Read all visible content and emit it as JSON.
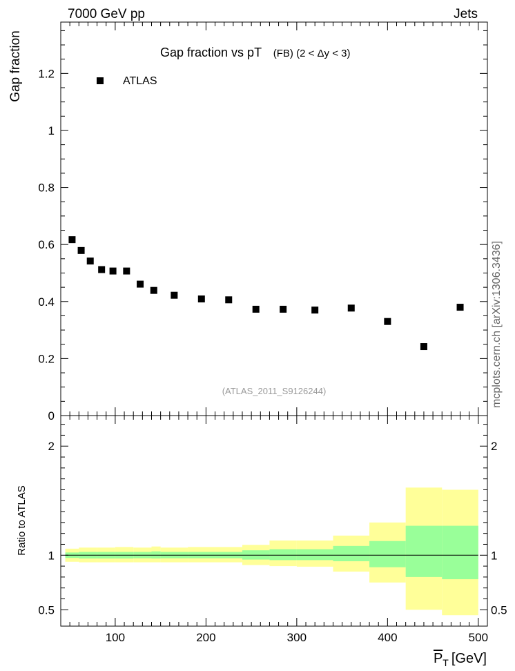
{
  "header": {
    "left": "7000 GeV pp",
    "right": "Jets",
    "side_label": "mcplots.cern.ch [arXiv:1306.3436]"
  },
  "chart_data": {
    "type": "scatter",
    "title_main": "Gap fraction vs pT",
    "title_sub": "(FB) (2 < Δy < 3)",
    "ylabel": "Gap fraction",
    "xlabel": "P_T [GeV]",
    "xlabel_parts": {
      "symbol": "P",
      "sub": "T",
      "unit": "[GeV]"
    },
    "analysis_tag": "(ATLAS_2011_S9126244)",
    "legend": [
      {
        "name": "ATLAS",
        "marker": "filled-square",
        "color": "#000000",
        "position": "top-left"
      }
    ],
    "xlim": [
      40,
      510
    ],
    "ylim": [
      0,
      1.38
    ],
    "yticks": [
      0,
      0.2,
      0.4,
      0.6,
      0.8,
      1,
      1.2
    ],
    "ytick_labels": [
      "0",
      "0.2",
      "0.4",
      "0.6",
      "0.8",
      "1",
      "1.2"
    ],
    "series": [
      {
        "name": "ATLAS",
        "x": [
          52.5,
          62.5,
          72.5,
          85,
          97.5,
          112.5,
          127.5,
          142.5,
          165,
          195,
          225,
          255,
          285,
          320,
          360,
          400,
          440,
          480
        ],
        "y": [
          0.617,
          0.579,
          0.542,
          0.512,
          0.507,
          0.507,
          0.461,
          0.439,
          0.422,
          0.409,
          0.406,
          0.373,
          0.373,
          0.37,
          0.377,
          0.33,
          0.242,
          0.38
        ]
      }
    ],
    "ratio_panel": {
      "ylabel": "Ratio to ATLAS",
      "ylim": [
        0.35,
        2.28
      ],
      "yticks": [
        0.5,
        1,
        2
      ],
      "ytick_labels": [
        "0.5",
        "1",
        "2"
      ],
      "xticks": [
        100,
        200,
        300,
        400,
        500
      ],
      "xtick_labels": [
        "100",
        "200",
        "300",
        "400",
        "500"
      ],
      "reference": 1,
      "bin_edges": [
        45,
        60,
        80,
        100,
        120,
        140,
        150,
        180,
        210,
        240,
        270,
        300,
        340,
        380,
        420,
        460,
        500
      ],
      "stat_band": {
        "color": "#99ff99",
        "lo": [
          0.975,
          0.97,
          0.97,
          0.97,
          0.972,
          0.97,
          0.972,
          0.972,
          0.972,
          0.96,
          0.955,
          0.955,
          0.945,
          0.89,
          0.8,
          0.78
        ],
        "hi": [
          1.025,
          1.03,
          1.03,
          1.03,
          1.03,
          1.035,
          1.03,
          1.03,
          1.03,
          1.045,
          1.055,
          1.055,
          1.085,
          1.13,
          1.27,
          1.27
        ]
      },
      "syst_band": {
        "color": "#ffff99",
        "lo": [
          0.94,
          0.935,
          0.935,
          0.935,
          0.935,
          0.935,
          0.935,
          0.935,
          0.935,
          0.91,
          0.9,
          0.895,
          0.85,
          0.75,
          0.5,
          0.45
        ],
        "hi": [
          1.06,
          1.07,
          1.07,
          1.075,
          1.07,
          1.08,
          1.07,
          1.075,
          1.075,
          1.095,
          1.135,
          1.135,
          1.18,
          1.3,
          1.62,
          1.6
        ]
      }
    }
  }
}
